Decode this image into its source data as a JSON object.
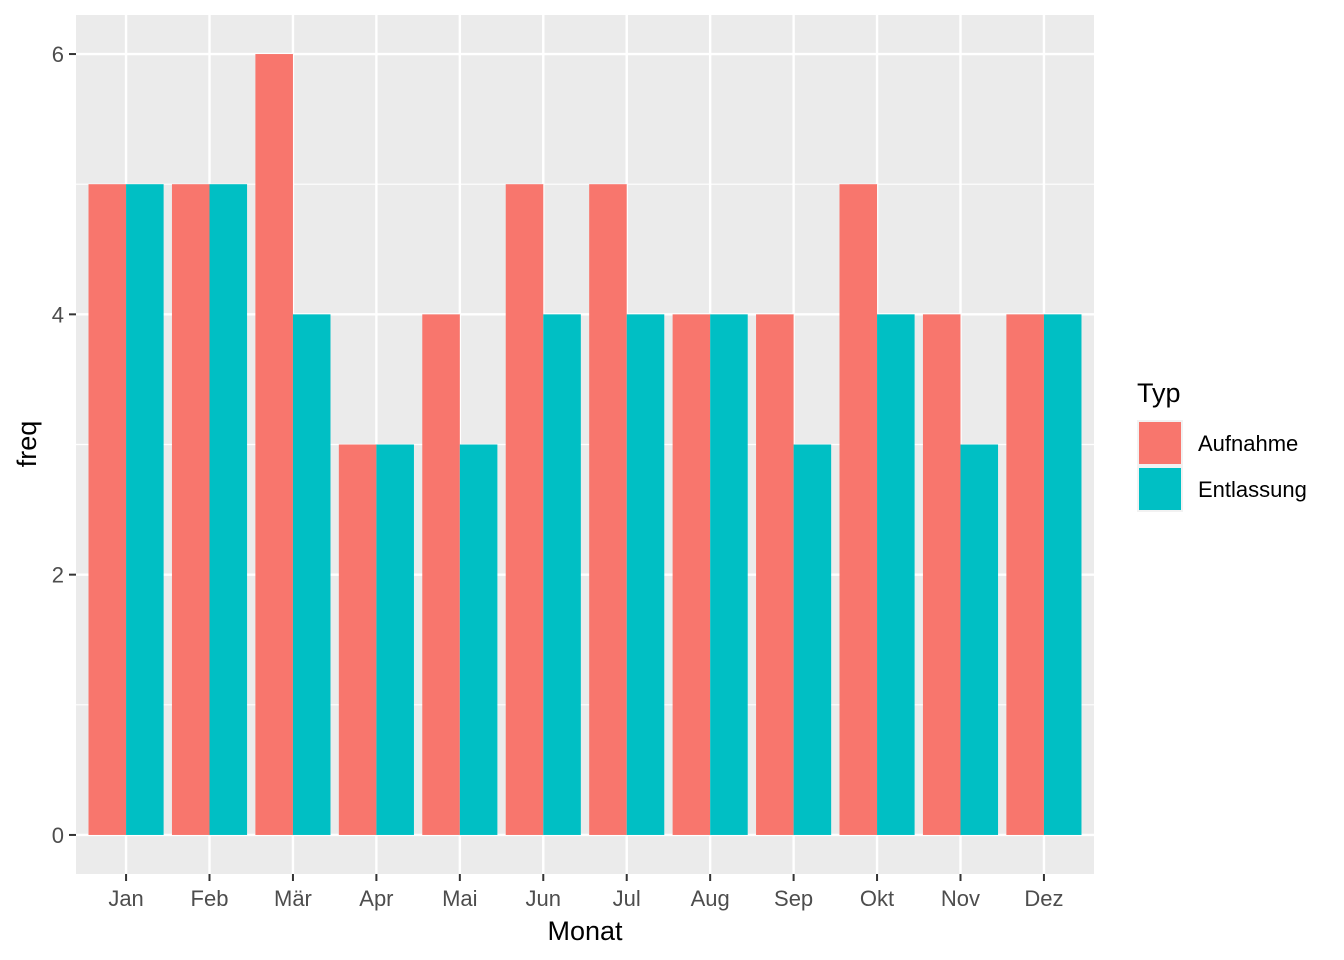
{
  "chart_data": {
    "type": "bar",
    "categories": [
      "Jan",
      "Feb",
      "Mär",
      "Apr",
      "Mai",
      "Jun",
      "Jul",
      "Aug",
      "Sep",
      "Okt",
      "Nov",
      "Dez"
    ],
    "series": [
      {
        "name": "Aufnahme",
        "color": "#F8766D",
        "values": [
          5,
          5,
          6,
          3,
          4,
          5,
          5,
          4,
          4,
          5,
          4,
          4
        ]
      },
      {
        "name": "Entlassung",
        "color": "#00BFC4",
        "values": [
          5,
          5,
          4,
          3,
          3,
          4,
          4,
          4,
          3,
          4,
          3,
          4
        ]
      }
    ],
    "xlabel": "Monat",
    "ylabel": "freq",
    "ylim": [
      -0.3,
      6.3
    ],
    "yticks": [
      0,
      2,
      4,
      6
    ],
    "ytick_labels": [
      "0",
      "2",
      "4",
      "6"
    ],
    "legend": {
      "title": "Typ",
      "placement": "right"
    },
    "grid": true,
    "panel_background": "#EBEBEB",
    "grid_color": "#FFFFFF"
  }
}
